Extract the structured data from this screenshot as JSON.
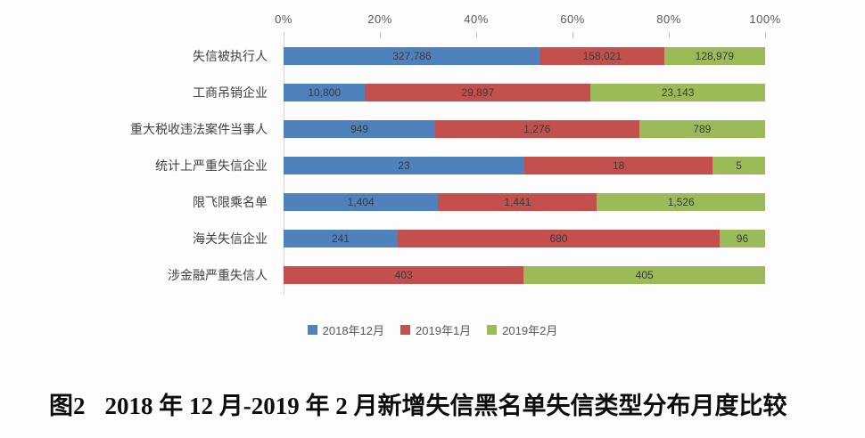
{
  "chart_data": {
    "type": "bar",
    "orientation": "horizontal",
    "stacked": true,
    "percent_stacked": true,
    "grid": false,
    "legend_position": "bottom",
    "x_ticks": [
      "0%",
      "20%",
      "40%",
      "60%",
      "80%",
      "100%"
    ],
    "xlim": [
      0,
      100
    ],
    "categories": [
      "失信被执行人",
      "工商吊销企业",
      "重大税收违法案件当事人",
      "统计上严重失信企业",
      "限飞限乘名单",
      "海关失信企业",
      "涉金融严重失信人"
    ],
    "series": [
      {
        "name": "2018年12月",
        "color": "#4f81bd",
        "values": [
          327786,
          10800,
          949,
          23,
          1404,
          241,
          0
        ]
      },
      {
        "name": "2019年1月",
        "color": "#c3504c",
        "values": [
          158021,
          29897,
          1276,
          18,
          1441,
          680,
          403
        ]
      },
      {
        "name": "2019年2月",
        "color": "#9bbb59",
        "values": [
          128979,
          23143,
          789,
          5,
          1526,
          96,
          405
        ]
      }
    ],
    "value_labels": [
      [
        "327,786",
        "10,800",
        "949",
        "23",
        "1,404",
        "241",
        ""
      ],
      [
        "158,021",
        "29,897",
        "1,276",
        "18",
        "1,441",
        "680",
        "403"
      ],
      [
        "128,979",
        "23,143",
        "789",
        "5",
        "1,526",
        "96",
        "405"
      ]
    ]
  },
  "caption": {
    "prefix": "图2",
    "text": "2018 年 12 月-2019 年 2 月新增失信黑名单失信类型分布月度比较"
  },
  "colors": {
    "axis_text": "#595959",
    "category_text": "#404040",
    "value_text": "#3a3a3a",
    "axis_line": "#d6d6d6"
  }
}
